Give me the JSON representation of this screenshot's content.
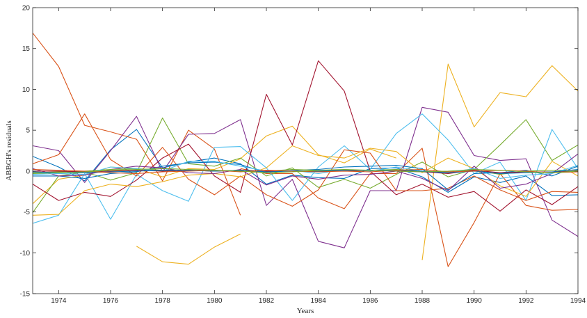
{
  "chart_data": {
    "type": "line",
    "xlabel": "Years",
    "ylabel": "ABBGH's residuals",
    "xlim": [
      1973,
      1994
    ],
    "ylim": [
      -15,
      20
    ],
    "xticks": [
      1974,
      1976,
      1978,
      1980,
      1982,
      1984,
      1986,
      1988,
      1990,
      1992,
      1994
    ],
    "yticks": [
      -15,
      -10,
      -5,
      0,
      5,
      10,
      15,
      20
    ],
    "grid": false,
    "legend": "none",
    "series": [
      {
        "color": "#0072BD",
        "x": [
          1973,
          1974,
          1975,
          1976,
          1977,
          1978,
          1979,
          1980,
          1981,
          1982,
          1983,
          1984,
          1985,
          1986,
          1987,
          1988,
          1989,
          1990,
          1991,
          1992,
          1993,
          1994
        ],
        "y": [
          1.8,
          0.5,
          -1.2,
          2.6,
          5.1,
          0.4,
          1.1,
          1.6,
          0.9,
          -1.6,
          -0.5,
          -0.8,
          -0.9,
          0.3,
          0.4,
          -0.7,
          -2.6,
          -0.7,
          -1.4,
          -0.6,
          -3.0,
          -2.9
        ]
      },
      {
        "color": "#D95319",
        "x": [
          1973,
          1974,
          1975,
          1976,
          1977,
          1978,
          1979,
          1980,
          1981
        ],
        "y": [
          16.9,
          12.8,
          5.6,
          4.8,
          3.9,
          -1.2,
          5.0,
          2.7,
          -5.4
        ]
      },
      {
        "color": "#D95319",
        "x": [
          1981,
          1982,
          1983,
          1984,
          1985,
          1986,
          1987,
          1988,
          1989,
          1990,
          1991,
          1992,
          1993,
          1994
        ],
        "y": [
          0.3,
          -0.3,
          -0.3,
          -3.3,
          -4.6,
          -0.3,
          -0.3,
          2.8,
          -11.7,
          -6.3,
          -0.3,
          -4.2,
          -4.8,
          -4.7
        ]
      },
      {
        "color": "#EDB120",
        "x": [
          1973,
          1974,
          1975,
          1976,
          1977,
          1978,
          1979,
          1980,
          1981,
          1982,
          1983,
          1984,
          1985,
          1986,
          1987
        ],
        "y": [
          -4.0,
          -1.0,
          -0.5,
          0.5,
          0.3,
          -0.7,
          0.3,
          0.2,
          1.5,
          4.3,
          5.5,
          2.0,
          1.0,
          2.7,
          1.6
        ]
      },
      {
        "color": "#EDB120",
        "x": [
          1977,
          1978,
          1979,
          1980,
          1981
        ],
        "y": [
          -9.2,
          -11.1,
          -11.4,
          -9.3,
          -7.7
        ]
      },
      {
        "color": "#EDB120",
        "x": [
          1988,
          1989,
          1990,
          1991,
          1992,
          1993,
          1994
        ],
        "y": [
          -10.9,
          13.1,
          5.4,
          9.6,
          9.1,
          12.9,
          9.8
        ]
      },
      {
        "color": "#7E2F8E",
        "x": [
          1973,
          1974,
          1975,
          1976,
          1977,
          1978,
          1979,
          1980,
          1981,
          1982,
          1983,
          1984,
          1985,
          1986,
          1987,
          1988,
          1989,
          1990,
          1991,
          1992,
          1993,
          1994
        ],
        "y": [
          3.1,
          2.5,
          -1.4,
          2.5,
          6.7,
          -0.1,
          4.5,
          4.6,
          6.3,
          -4.2,
          -1.0,
          -8.6,
          -9.4,
          -2.4,
          -2.4,
          7.8,
          7.2,
          1.9,
          1.3,
          1.5,
          -6.0,
          -8.0
        ]
      },
      {
        "color": "#77AC30",
        "x": [
          1973,
          1974,
          1975,
          1976,
          1977,
          1978,
          1979,
          1980,
          1981,
          1982,
          1983,
          1984,
          1985,
          1986,
          1987,
          1988,
          1989,
          1990,
          1991,
          1992,
          1993,
          1994
        ],
        "y": [
          -5.1,
          -0.6,
          -0.1,
          -1.1,
          -0.2,
          6.5,
          0.9,
          0.6,
          1.6,
          -0.6,
          0.4,
          -2.0,
          -1.0,
          -2.1,
          -0.4,
          1.1,
          -0.7,
          0.2,
          3.2,
          6.3,
          1.3,
          3.2
        ]
      },
      {
        "color": "#4DBEEE",
        "x": [
          1973,
          1974,
          1975,
          1976,
          1977,
          1978,
          1979,
          1980,
          1981,
          1982,
          1983,
          1984,
          1985,
          1986,
          1987,
          1988,
          1989,
          1990,
          1991,
          1992,
          1993,
          1994
        ],
        "y": [
          -6.4,
          -5.4,
          -0.3,
          -5.9,
          -0.4,
          -2.4,
          -3.7,
          2.9,
          3.0,
          0.4,
          -3.6,
          0.5,
          3.1,
          0.2,
          4.6,
          7.0,
          3.8,
          -0.3,
          1.1,
          -3.6,
          5.1,
          0.3
        ]
      },
      {
        "color": "#A2142F",
        "x": [
          1973,
          1974,
          1975,
          1976,
          1977,
          1978,
          1979,
          1980,
          1981,
          1982,
          1983,
          1984,
          1985,
          1986,
          1987,
          1988,
          1989,
          1990,
          1991,
          1992,
          1993,
          1994
        ],
        "y": [
          -1.6,
          -3.6,
          -2.6,
          -3.1,
          -1.1,
          1.6,
          3.3,
          -0.6,
          -2.6,
          9.4,
          3.2,
          13.5,
          9.8,
          0.0,
          -2.9,
          -1.6,
          -3.2,
          -2.5,
          -4.9,
          -2.3,
          -4.1,
          -1.9
        ]
      },
      {
        "color": "#D95319",
        "x": [
          1973,
          1974,
          1975,
          1976,
          1977,
          1978,
          1979,
          1980,
          1981,
          1982,
          1983,
          1984,
          1985,
          1986,
          1987,
          1988,
          1989,
          1990,
          1991,
          1992,
          1993,
          1994
        ],
        "y": [
          0.9,
          2.0,
          7.0,
          1.4,
          -0.6,
          2.9,
          -1.0,
          -2.9,
          -0.6,
          -2.9,
          -4.3,
          -2.3,
          2.6,
          2.2,
          -2.4,
          -2.4,
          -2.1,
          -0.6,
          -2.3,
          -3.6,
          -2.5,
          -2.6
        ]
      },
      {
        "color": "#EDB120",
        "x": [
          1973,
          1974,
          1975,
          1976,
          1977,
          1978,
          1979,
          1980,
          1981,
          1982,
          1983,
          1984,
          1985,
          1986,
          1987,
          1988,
          1989,
          1990,
          1991,
          1992,
          1993,
          1994
        ],
        "y": [
          -5.4,
          -5.3,
          -2.4,
          -1.6,
          -1.9,
          -1.3,
          -0.5,
          -0.3,
          -0.7,
          0.4,
          3.1,
          1.9,
          1.6,
          2.8,
          2.4,
          -0.2,
          1.6,
          0.3,
          -1.8,
          -3.1,
          1.2,
          -0.6
        ]
      },
      {
        "color": "#0072BD",
        "x": [
          1973,
          1974,
          1975,
          1976,
          1977,
          1978,
          1979,
          1980,
          1981,
          1982,
          1983,
          1984,
          1985,
          1986,
          1987,
          1988,
          1989,
          1990,
          1991,
          1992,
          1993,
          1994
        ],
        "y": [
          -0.6,
          -0.6,
          -0.9,
          -0.3,
          -0.1,
          0.6,
          1.0,
          1.1,
          0.8,
          -0.2,
          0.1,
          0.2,
          0.5,
          0.6,
          0.7,
          0.3,
          -2.3,
          -0.3,
          -0.2,
          0.1,
          -0.6,
          0.6
        ]
      },
      {
        "color": "#7E2F8E",
        "x": [
          1973,
          1974,
          1975,
          1976,
          1977,
          1978,
          1979,
          1980,
          1981,
          1982,
          1983,
          1984,
          1985,
          1986,
          1987,
          1988,
          1989,
          1990,
          1991,
          1992,
          1993,
          1994
        ],
        "y": [
          0.3,
          -0.6,
          -0.5,
          0.2,
          0.6,
          0.4,
          -0.2,
          -0.3,
          0.2,
          -1.7,
          -0.6,
          -1.0,
          -0.5,
          -0.4,
          0.0,
          -0.9,
          -2.4,
          0.6,
          -2.1,
          -1.6,
          -0.3,
          2.1
        ]
      },
      {
        "color": "#77AC30",
        "x": [
          1973,
          1974,
          1975,
          1976,
          1977,
          1978,
          1979,
          1980,
          1981,
          1982,
          1983,
          1984,
          1985,
          1986,
          1987,
          1988,
          1989,
          1990,
          1991,
          1992,
          1993,
          1994
        ],
        "y": [
          -0.2,
          -0.1,
          0.0,
          0.2,
          0.3,
          0.1,
          0.1,
          0.0,
          0.1,
          0.0,
          0.2,
          0.1,
          0.1,
          0.1,
          0.2,
          0.0,
          -0.1,
          0.1,
          -0.4,
          0.0,
          0.1,
          0.1
        ]
      },
      {
        "color": "#4DBEEE",
        "x": [
          1973,
          1974,
          1975,
          1976,
          1977,
          1978,
          1979,
          1980,
          1981,
          1982,
          1983,
          1984,
          1985,
          1986,
          1987,
          1988,
          1989,
          1990,
          1991,
          1992,
          1993,
          1994
        ],
        "y": [
          -0.4,
          -0.3,
          -0.4,
          0.5,
          0.3,
          0.0,
          1.2,
          1.2,
          0.6,
          0.0,
          0.1,
          -0.3,
          0.2,
          0.0,
          0.5,
          0.0,
          -0.2,
          0.3,
          -0.9,
          -0.5,
          -0.3,
          0.7
        ]
      },
      {
        "color": "#A2142F",
        "x": [
          1973,
          1974,
          1975,
          1976,
          1977,
          1978,
          1979,
          1980,
          1981,
          1982,
          1983,
          1984,
          1985,
          1986,
          1987,
          1988,
          1989,
          1990,
          1991,
          1992,
          1993,
          1994
        ],
        "y": [
          0.0,
          0.0,
          -0.1,
          0.0,
          0.1,
          0.0,
          0.1,
          0.0,
          0.1,
          0.0,
          0.0,
          0.0,
          0.0,
          0.1,
          0.0,
          -0.1,
          -0.3,
          0.1,
          -0.2,
          -0.1,
          -0.1,
          0.0
        ]
      },
      {
        "color": "#0072BD",
        "x": [
          1973,
          1974,
          1975,
          1976,
          1977,
          1978,
          1979,
          1980,
          1981,
          1982,
          1983,
          1984,
          1985,
          1986,
          1987,
          1988,
          1989,
          1990,
          1991,
          1992,
          1993,
          1994
        ],
        "y": [
          -0.1,
          -0.2,
          -0.2,
          -0.1,
          0.0,
          0.1,
          0.1,
          0.0,
          0.1,
          -0.1,
          0.0,
          0.0,
          0.1,
          0.1,
          0.1,
          0.0,
          -0.2,
          0.0,
          -0.3,
          -0.2,
          -0.1,
          0.2
        ]
      },
      {
        "color": "#D95319",
        "x": [
          1973,
          1974,
          1975,
          1976,
          1977,
          1978,
          1979,
          1980,
          1981,
          1982,
          1983,
          1984,
          1985,
          1986,
          1987,
          1988,
          1989,
          1990,
          1991,
          1992,
          1993,
          1994
        ],
        "y": [
          0.2,
          0.1,
          0.0,
          -0.2,
          -0.3,
          -0.1,
          0.0,
          0.1,
          -0.1,
          0.1,
          0.0,
          -0.1,
          0.0,
          -0.1,
          0.1,
          0.2,
          -0.1,
          0.0,
          0.1,
          0.0,
          -0.2,
          -0.1
        ]
      },
      {
        "color": "#77AC30",
        "x": [
          1973,
          1974,
          1975,
          1976,
          1977,
          1978,
          1979,
          1980,
          1981,
          1982,
          1983,
          1984,
          1985,
          1986,
          1987,
          1988,
          1989,
          1990,
          1991,
          1992,
          1993,
          1994
        ],
        "y": [
          -0.3,
          -0.2,
          -0.1,
          0.1,
          0.2,
          0.3,
          0.2,
          0.1,
          0.0,
          -0.2,
          -0.1,
          0.1,
          0.2,
          0.1,
          0.0,
          -0.1,
          0.0,
          0.2,
          0.1,
          -0.1,
          -0.2,
          0.0
        ]
      }
    ]
  }
}
